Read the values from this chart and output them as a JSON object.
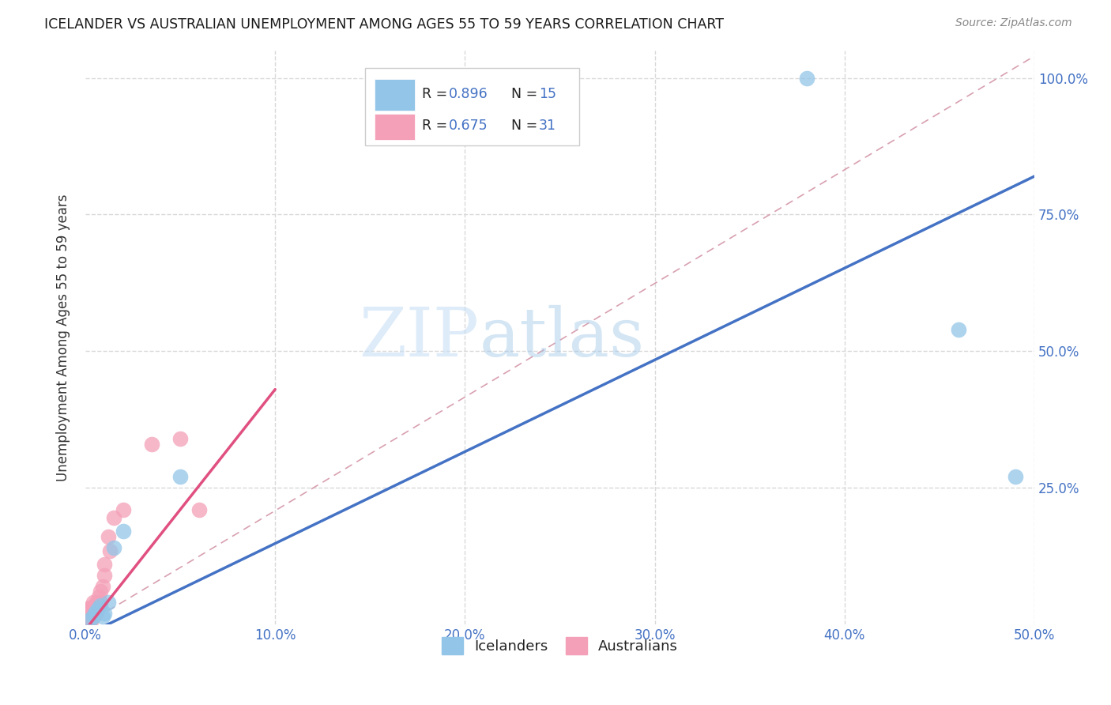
{
  "title": "ICELANDER VS AUSTRALIAN UNEMPLOYMENT AMONG AGES 55 TO 59 YEARS CORRELATION CHART",
  "source": "Source: ZipAtlas.com",
  "ylabel": "Unemployment Among Ages 55 to 59 years",
  "xlim": [
    0.0,
    0.5
  ],
  "ylim": [
    0.0,
    1.05
  ],
  "xtick_labels": [
    "0.0%",
    "10.0%",
    "20.0%",
    "30.0%",
    "40.0%",
    "50.0%"
  ],
  "xtick_vals": [
    0.0,
    0.1,
    0.2,
    0.3,
    0.4,
    0.5
  ],
  "ytick_labels": [
    "25.0%",
    "50.0%",
    "75.0%",
    "100.0%"
  ],
  "ytick_vals": [
    0.25,
    0.5,
    0.75,
    1.0
  ],
  "icelanders_color": "#92c5e8",
  "australians_color": "#f4a0b8",
  "legend_label_icelanders": "Icelanders",
  "legend_label_australians": "Australians",
  "watermark_zip": "ZIP",
  "watermark_atlas": "atlas",
  "icelanders_x": [
    0.003,
    0.004,
    0.005,
    0.006,
    0.007,
    0.008,
    0.009,
    0.01,
    0.012,
    0.015,
    0.02,
    0.05,
    0.38,
    0.46,
    0.49
  ],
  "icelanders_y": [
    0.01,
    0.015,
    0.02,
    0.025,
    0.03,
    0.035,
    0.015,
    0.02,
    0.04,
    0.14,
    0.17,
    0.27,
    1.0,
    0.54,
    0.27
  ],
  "australians_x": [
    0.001,
    0.001,
    0.002,
    0.002,
    0.002,
    0.003,
    0.003,
    0.003,
    0.003,
    0.004,
    0.004,
    0.004,
    0.004,
    0.005,
    0.005,
    0.006,
    0.006,
    0.007,
    0.007,
    0.008,
    0.008,
    0.009,
    0.01,
    0.01,
    0.012,
    0.013,
    0.015,
    0.02,
    0.035,
    0.05,
    0.06
  ],
  "australians_y": [
    0.02,
    0.025,
    0.015,
    0.025,
    0.03,
    0.005,
    0.01,
    0.02,
    0.03,
    0.02,
    0.025,
    0.04,
    0.015,
    0.025,
    0.035,
    0.04,
    0.02,
    0.05,
    0.035,
    0.06,
    0.04,
    0.07,
    0.11,
    0.09,
    0.16,
    0.135,
    0.195,
    0.21,
    0.33,
    0.34,
    0.21
  ],
  "ice_line_x0": 0.0,
  "ice_line_y0": -0.02,
  "ice_line_x1": 0.5,
  "ice_line_y1": 0.82,
  "aus_line_x0": 0.0,
  "aus_line_y0": -0.01,
  "aus_line_x1": 0.1,
  "aus_line_y1": 0.43,
  "dash_line_x0": 0.0,
  "dash_line_y0": 0.0,
  "dash_line_x1": 0.5,
  "dash_line_y1": 1.04,
  "background_color": "#ffffff",
  "grid_color": "#d8d8d8",
  "title_color": "#1a1a1a",
  "axis_label_color": "#333333",
  "tick_color_blue": "#4472c4",
  "source_color": "#888888",
  "line_blue": "#4472c4",
  "line_pink": "#e05080"
}
